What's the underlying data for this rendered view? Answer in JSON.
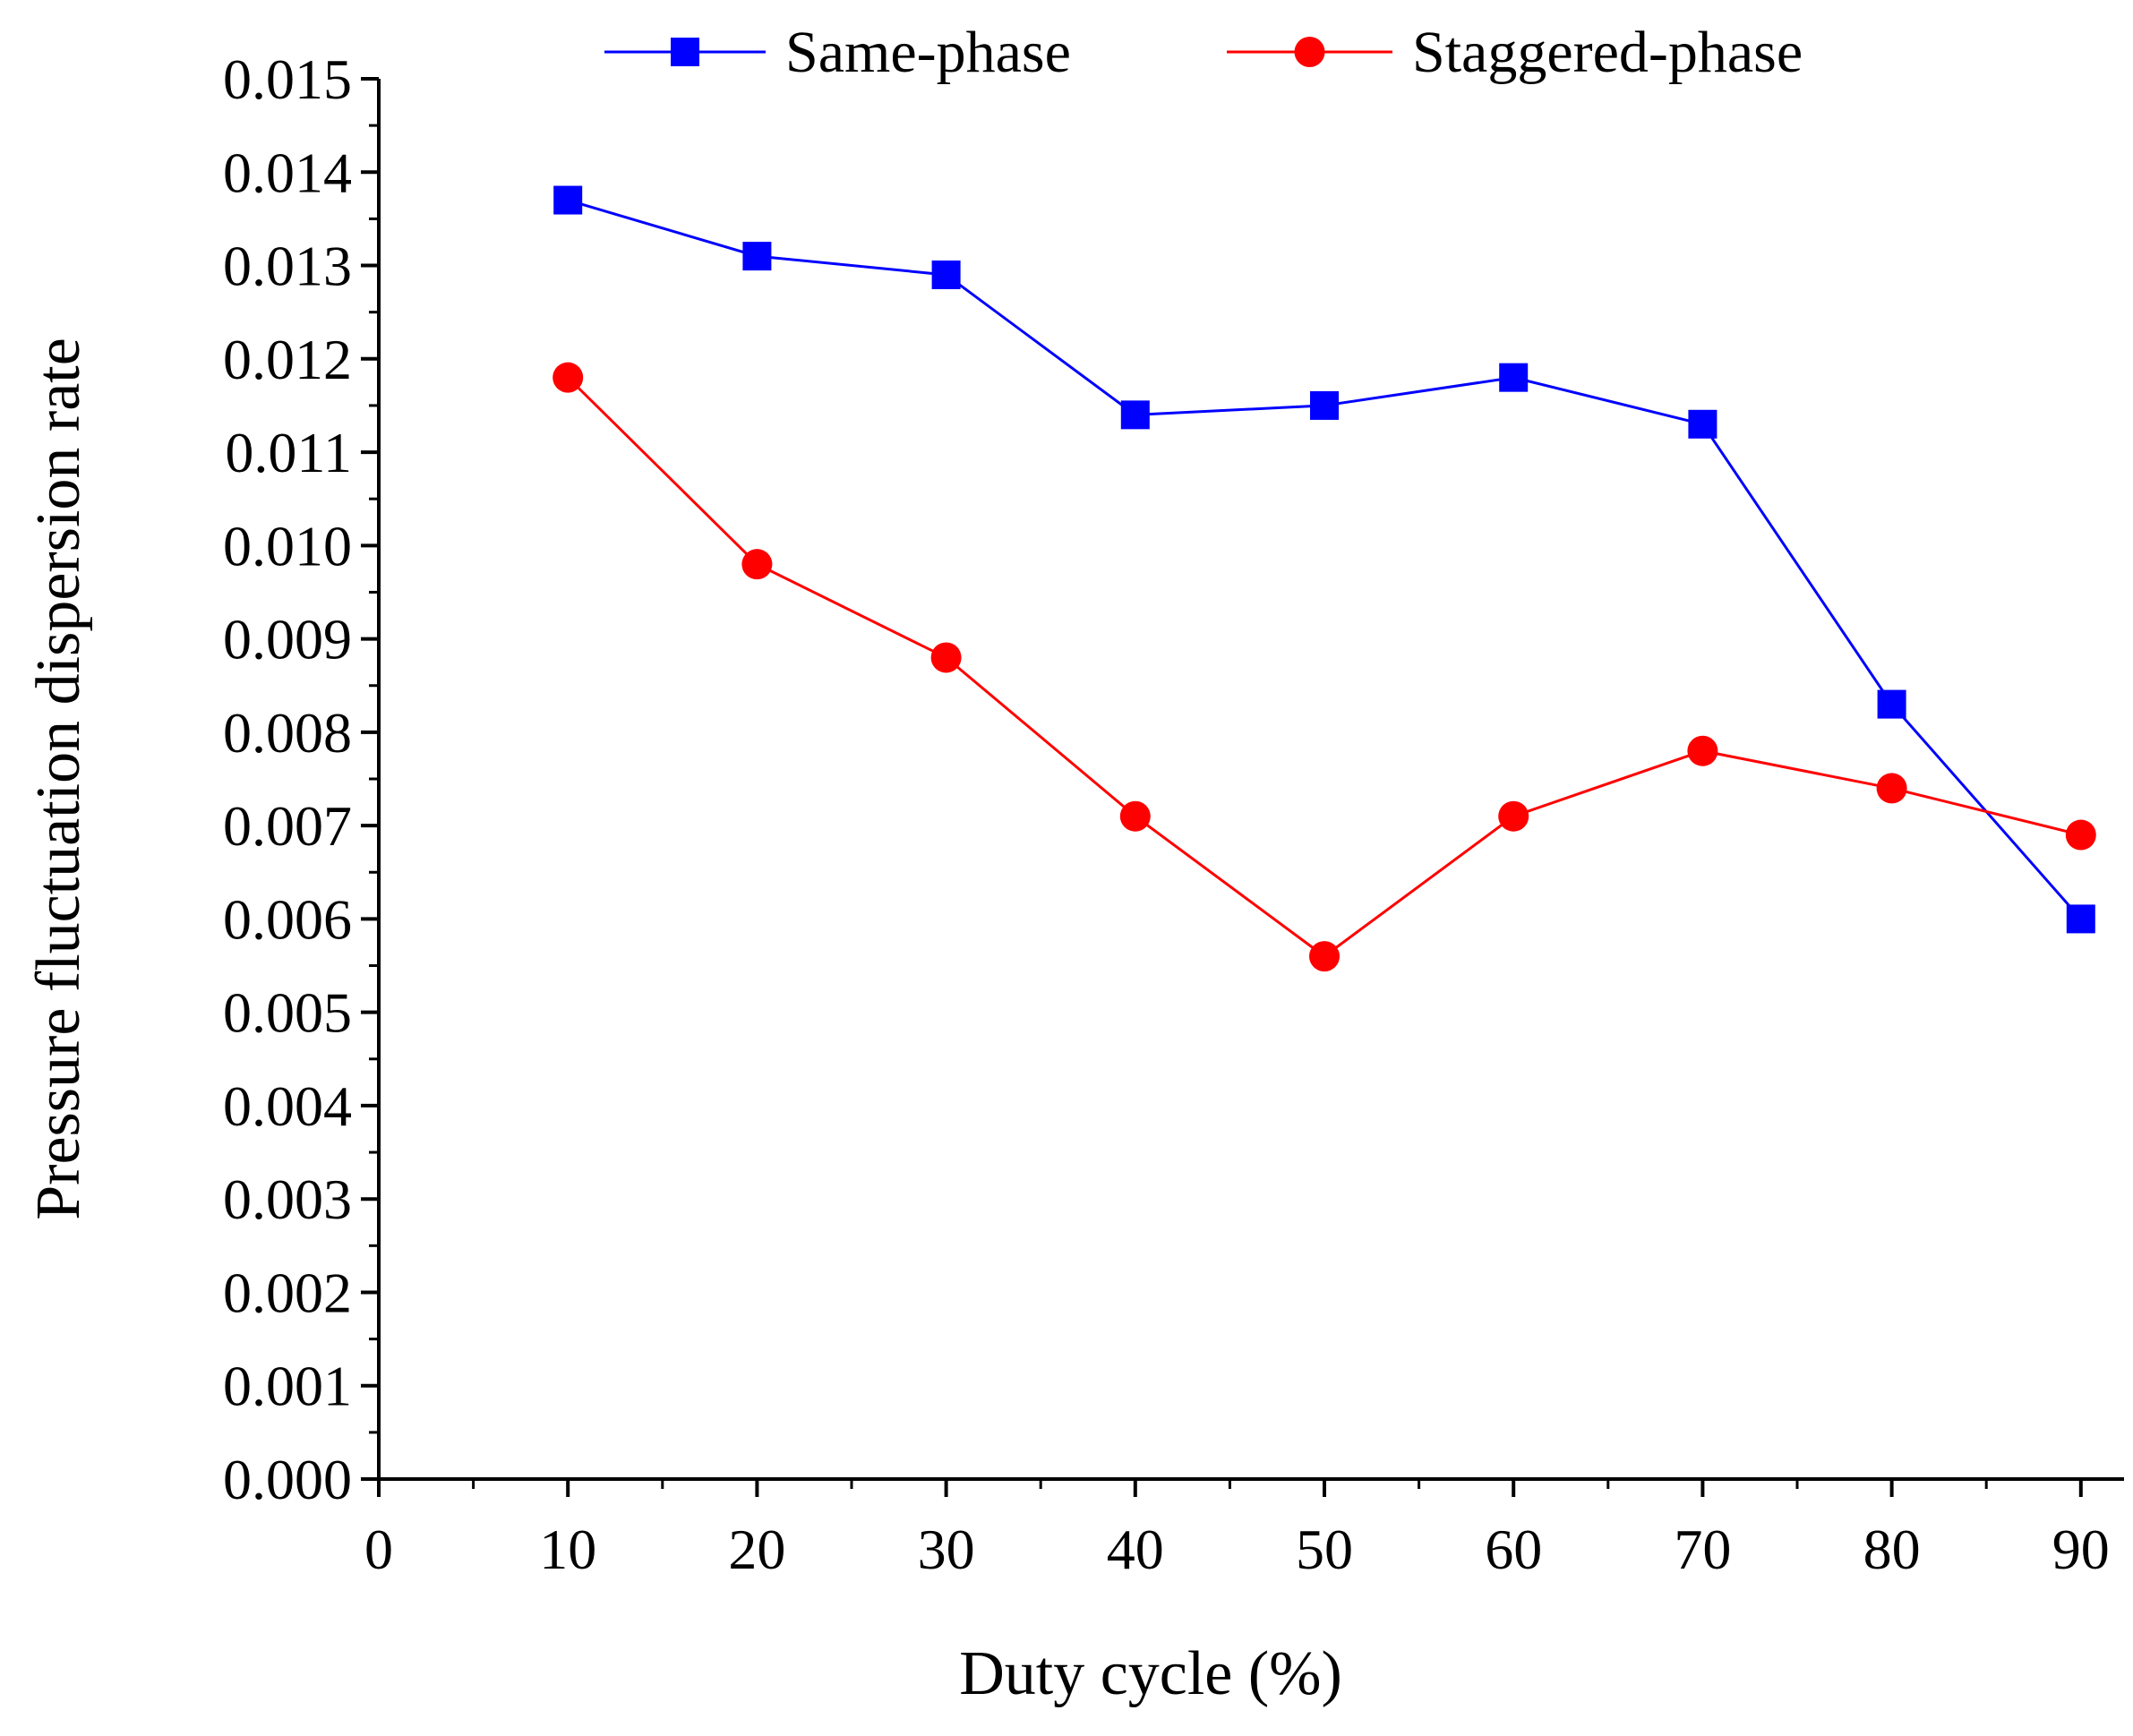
{
  "chart_data": {
    "type": "line",
    "title": "",
    "xlabel": "Duty cycle (%)",
    "ylabel": "Pressure fluctuation dispersion rate",
    "xlim": [
      0,
      93
    ],
    "ylim": [
      0,
      0.015
    ],
    "x_ticks": [
      "0",
      "10",
      "20",
      "30",
      "40",
      "50",
      "60",
      "70",
      "80",
      "90"
    ],
    "y_ticks": [
      "0.000",
      "0.001",
      "0.002",
      "0.003",
      "0.004",
      "0.005",
      "0.006",
      "0.007",
      "0.008",
      "0.009",
      "0.010",
      "0.011",
      "0.012",
      "0.013",
      "0.014",
      "0.015"
    ],
    "x": [
      10,
      20,
      30,
      40,
      50,
      60,
      70,
      80,
      90
    ],
    "legend_position": "top",
    "series": [
      {
        "name": "Same-phase",
        "marker": "square",
        "color": "#0000ff",
        "values": [
          0.0137,
          0.0131,
          0.0129,
          0.0114,
          0.0115,
          0.0118,
          0.0113,
          0.0083,
          0.006
        ]
      },
      {
        "name": "Staggered-phase",
        "marker": "circle",
        "color": "#ff0000",
        "values": [
          0.0118,
          0.0098,
          0.0088,
          0.0071,
          0.0056,
          0.0071,
          0.0078,
          0.0074,
          0.0069
        ]
      }
    ]
  }
}
